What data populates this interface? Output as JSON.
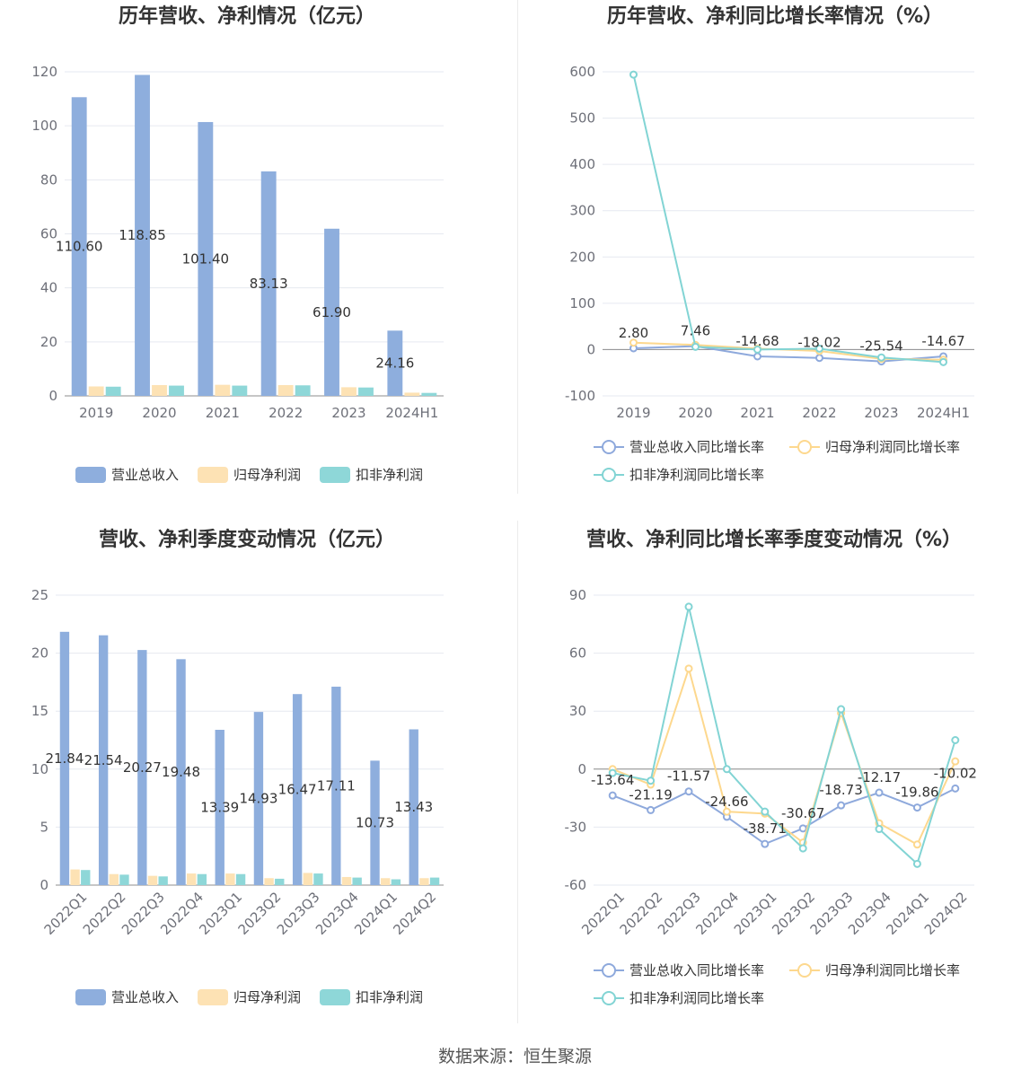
{
  "source_text": "数据来源：恒生聚源",
  "colors": {
    "revenue": "#8eaedd",
    "net_profit": "#fde2b4",
    "deducted_profit": "#8ed7d8",
    "revenue_line": "#8ea9dc",
    "net_profit_line": "#fdd88e",
    "deducted_line": "#82d4d4",
    "grid": "#e6e9f0",
    "axis": "#6e7079"
  },
  "chart_data": [
    {
      "type": "bar",
      "title": "历年营收、净利情况（亿元）",
      "categories": [
        "2019",
        "2020",
        "2021",
        "2022",
        "2023",
        "2024H1"
      ],
      "ylim": [
        0,
        120
      ],
      "yticks": [
        0,
        20,
        40,
        60,
        80,
        100,
        120
      ],
      "series": [
        {
          "name": "营业总收入",
          "values": [
            110.6,
            118.85,
            101.4,
            83.13,
            61.9,
            24.16
          ],
          "labels": [
            "110.60",
            "118.85",
            "101.40",
            "83.13",
            "61.90",
            "24.16"
          ]
        },
        {
          "name": "归母净利润",
          "values": [
            3.5,
            4.0,
            4.1,
            4.0,
            3.2,
            1.2
          ]
        },
        {
          "name": "扣非净利润",
          "values": [
            3.4,
            3.8,
            3.8,
            3.9,
            3.1,
            1.1
          ]
        }
      ],
      "legend_position": "bottom"
    },
    {
      "type": "line",
      "title": "历年营收、净利同比增长率情况（%）",
      "categories": [
        "2019",
        "2020",
        "2021",
        "2022",
        "2023",
        "2024H1"
      ],
      "ylim": [
        -100,
        600
      ],
      "yticks": [
        -100,
        0,
        100,
        200,
        300,
        400,
        500,
        600
      ],
      "series": [
        {
          "name": "营业总收入同比增长率",
          "values": [
            2.8,
            7.46,
            -14.68,
            -18.02,
            -25.54,
            -14.67
          ],
          "labels": [
            "2.80",
            "7.46",
            "-14.68",
            "-18.02",
            "-25.54",
            "-14.67"
          ]
        },
        {
          "name": "归母净利润同比增长率",
          "values": [
            15,
            10,
            2,
            -3,
            -20,
            -22
          ]
        },
        {
          "name": "扣非净利润同比增长率",
          "values": [
            594,
            6,
            0,
            2,
            -17,
            -27
          ]
        }
      ],
      "legend_position": "bottom"
    },
    {
      "type": "bar",
      "title": "营收、净利季度变动情况（亿元）",
      "categories": [
        "2022Q1",
        "2022Q2",
        "2022Q3",
        "2022Q4",
        "2023Q1",
        "2023Q2",
        "2023Q3",
        "2023Q4",
        "2024Q1",
        "2024Q2"
      ],
      "ylim": [
        0,
        25
      ],
      "yticks": [
        0,
        5,
        10,
        15,
        20,
        25
      ],
      "series": [
        {
          "name": "营业总收入",
          "values": [
            21.84,
            21.54,
            20.27,
            19.48,
            13.39,
            14.93,
            16.47,
            17.11,
            10.73,
            13.43
          ],
          "labels": [
            "21.84",
            "21.54",
            "20.27",
            "19.48",
            "13.39",
            "14.93",
            "16.47",
            "17.11",
            "10.73",
            "13.43"
          ]
        },
        {
          "name": "归母净利润",
          "values": [
            1.35,
            0.95,
            0.8,
            1.0,
            1.0,
            0.6,
            1.05,
            0.7,
            0.6,
            0.6
          ]
        },
        {
          "name": "扣非净利润",
          "values": [
            1.3,
            0.9,
            0.75,
            0.95,
            0.95,
            0.55,
            1.0,
            0.65,
            0.5,
            0.65
          ]
        }
      ],
      "legend_position": "bottom"
    },
    {
      "type": "line",
      "title": "营收、净利同比增长率季度变动情况（%）",
      "categories": [
        "2022Q1",
        "2022Q2",
        "2022Q3",
        "2022Q4",
        "2023Q1",
        "2023Q2",
        "2023Q3",
        "2023Q4",
        "2024Q1",
        "2024Q2"
      ],
      "ylim": [
        -60,
        90
      ],
      "yticks": [
        -60,
        -30,
        0,
        30,
        60,
        90
      ],
      "series": [
        {
          "name": "营业总收入同比增长率",
          "values": [
            -13.64,
            -21.19,
            -11.57,
            -24.66,
            -38.71,
            -30.67,
            -18.73,
            -12.17,
            -19.86,
            -10.02
          ],
          "labels": [
            "-13.64",
            "-21.19",
            "-11.57",
            "-24.66",
            "-38.71",
            "-30.67",
            "-18.73",
            "-12.17",
            "-19.86",
            "-10.02"
          ]
        },
        {
          "name": "归母净利润同比增长率",
          "values": [
            0,
            -8,
            52,
            -22,
            -23,
            -38,
            29,
            -28,
            -39,
            4
          ]
        },
        {
          "name": "扣非净利润同比增长率",
          "values": [
            -2,
            -6,
            84,
            0,
            -22,
            -41,
            31,
            -31,
            -49,
            15
          ]
        }
      ],
      "legend_position": "bottom"
    }
  ]
}
